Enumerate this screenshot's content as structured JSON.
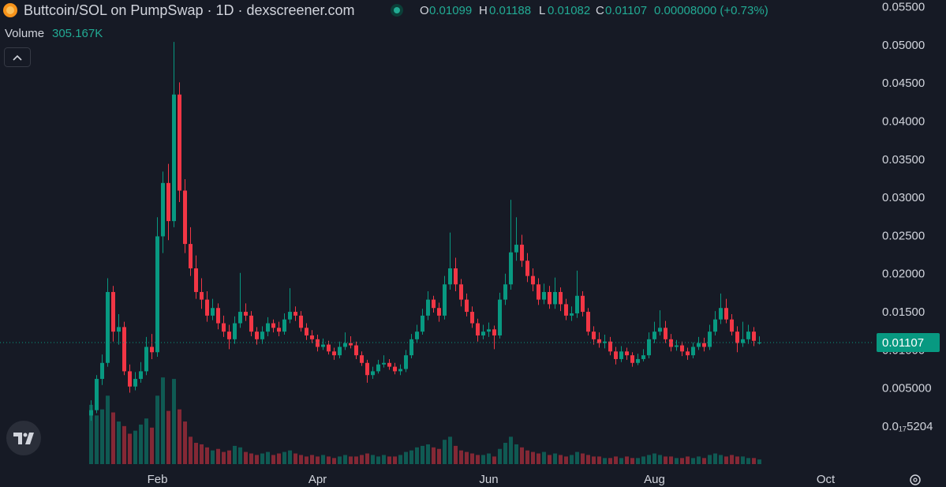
{
  "header": {
    "title": "Buttcoin/SOL on PumpSwap · 1D · dexscreener.com",
    "ohlc_labels": [
      "O",
      "H",
      "L",
      "C"
    ],
    "change": "0.00008000 (+0.73%)",
    "volume_title": "Volume",
    "volume_value": "305.167K"
  },
  "chart_data": {
    "type": "candlestick",
    "categories": [
      null,
      null,
      null,
      null,
      null,
      null,
      null,
      null,
      null,
      null,
      null,
      null,
      "Feb",
      null,
      null,
      null,
      null,
      null,
      null,
      null,
      null,
      null,
      null,
      null,
      null,
      null,
      null,
      null,
      null,
      null,
      null,
      null,
      null,
      null,
      null,
      null,
      null,
      null,
      null,
      null,
      null,
      "Apr",
      null,
      null,
      null,
      null,
      null,
      null,
      null,
      null,
      null,
      null,
      null,
      null,
      null,
      null,
      null,
      null,
      null,
      null,
      null,
      null,
      null,
      null,
      null,
      null,
      null,
      null,
      null,
      null,
      null,
      null,
      "Jun",
      null,
      null,
      null,
      null,
      null,
      null,
      null,
      null,
      null,
      null,
      null,
      null,
      null,
      null,
      null,
      null,
      null,
      null,
      null,
      null,
      null,
      null,
      null,
      null,
      null,
      null,
      null,
      null,
      null,
      "Aug",
      null,
      null,
      null,
      null,
      null,
      null,
      null,
      null,
      null,
      null,
      null,
      null,
      null,
      null,
      null,
      null,
      null,
      null,
      null,
      null,
      null,
      null,
      null,
      null,
      null,
      null,
      null,
      null,
      null,
      null,
      "Oct",
      null,
      null,
      null,
      null,
      null,
      null
    ],
    "open": [
      0.0015,
      0.0022,
      0.0063,
      0.0084,
      0.0177,
      0.0125,
      0.0131,
      0.0073,
      0.0053,
      0.0063,
      0.0073,
      0.0105,
      0.0098,
      0.025,
      0.032,
      0.027,
      0.0436,
      0.031,
      0.024,
      0.0208,
      0.0177,
      0.0167,
      0.0146,
      0.0156,
      0.0136,
      0.0125,
      0.0115,
      0.0136,
      0.0151,
      0.0146,
      0.0125,
      0.0115,
      0.0125,
      0.0136,
      0.013,
      0.0125,
      0.0141,
      0.0151,
      0.0146,
      0.013,
      0.012,
      0.0115,
      0.0105,
      0.0108,
      0.0099,
      0.0094,
      0.0105,
      0.011,
      0.0107,
      0.0094,
      0.0084,
      0.0068,
      0.0073,
      0.0082,
      0.0084,
      0.0079,
      0.0073,
      0.0076,
      0.0094,
      0.0115,
      0.0125,
      0.0146,
      0.0167,
      0.0156,
      0.0146,
      0.0187,
      0.0208,
      0.0187,
      0.0167,
      0.0151,
      0.0136,
      0.012,
      0.0125,
      0.0128,
      0.012,
      0.0167,
      0.0187,
      0.0229,
      0.0239,
      0.0218,
      0.0198,
      0.0187,
      0.0167,
      0.0177,
      0.0161,
      0.0177,
      0.0161,
      0.0146,
      0.0149,
      0.0172,
      0.0151,
      0.0125,
      0.0115,
      0.011,
      0.0112,
      0.0099,
      0.0089,
      0.0099,
      0.0094,
      0.0084,
      0.0089,
      0.0094,
      0.0115,
      0.0125,
      0.013,
      0.0115,
      0.0105,
      0.0107,
      0.0099,
      0.0094,
      0.0105,
      0.011,
      0.0105,
      0.0125,
      0.0141,
      0.0156,
      0.0141,
      0.0125,
      0.011,
      0.0115,
      0.0125,
      0.01099,
      null,
      null,
      null,
      null,
      null,
      null,
      null,
      null,
      null,
      null,
      null,
      null,
      null,
      null,
      null,
      null,
      null,
      null
    ],
    "high": [
      0.0035,
      0.0068,
      0.0095,
      0.0195,
      0.0185,
      0.0148,
      0.0138,
      0.0082,
      0.0072,
      0.0085,
      0.0118,
      0.0122,
      0.0275,
      0.0335,
      0.0345,
      0.0505,
      0.0452,
      0.0325,
      0.0262,
      0.0225,
      0.0195,
      0.0178,
      0.0168,
      0.0162,
      0.0146,
      0.0134,
      0.0145,
      0.0202,
      0.0162,
      0.0152,
      0.0131,
      0.0132,
      0.0144,
      0.0141,
      0.0138,
      0.0149,
      0.0182,
      0.0158,
      0.0152,
      0.0136,
      0.0127,
      0.0121,
      0.0116,
      0.0113,
      0.0104,
      0.0112,
      0.0124,
      0.0119,
      0.0112,
      0.0099,
      0.0088,
      0.0079,
      0.0088,
      0.0094,
      0.0089,
      0.0084,
      0.0082,
      0.0101,
      0.0122,
      0.0134,
      0.0155,
      0.0178,
      0.0172,
      0.0163,
      0.0198,
      0.0255,
      0.0222,
      0.0194,
      0.0175,
      0.0158,
      0.0142,
      0.0134,
      0.0137,
      0.0133,
      0.0176,
      0.0201,
      0.0298,
      0.0275,
      0.0252,
      0.0228,
      0.0208,
      0.0195,
      0.0188,
      0.0185,
      0.0196,
      0.0183,
      0.0168,
      0.0158,
      0.0205,
      0.0178,
      0.0156,
      0.0132,
      0.0124,
      0.0121,
      0.0118,
      0.0105,
      0.0106,
      0.0104,
      0.0098,
      0.0096,
      0.0102,
      0.0124,
      0.0138,
      0.0153,
      0.0139,
      0.0122,
      0.0114,
      0.0112,
      0.0104,
      0.0111,
      0.0118,
      0.0117,
      0.0134,
      0.0152,
      0.0175,
      0.0168,
      0.0148,
      0.0132,
      0.0138,
      0.0134,
      0.0131,
      0.01188,
      null,
      null,
      null,
      null,
      null,
      null,
      null,
      null,
      null,
      null,
      null,
      null,
      null,
      null,
      null,
      null,
      null,
      null
    ],
    "low": [
      0.0008,
      0.0018,
      0.0055,
      0.0079,
      0.0112,
      0.0108,
      0.0068,
      0.0045,
      0.0048,
      0.0058,
      0.0068,
      0.0089,
      0.0092,
      0.0228,
      0.0245,
      0.0262,
      0.0295,
      0.0228,
      0.0198,
      0.0168,
      0.0155,
      0.0138,
      0.014,
      0.0128,
      0.0118,
      0.0102,
      0.0109,
      0.013,
      0.0139,
      0.0119,
      0.0108,
      0.0109,
      0.0119,
      0.0124,
      0.0119,
      0.0121,
      0.0136,
      0.0139,
      0.0125,
      0.0114,
      0.011,
      0.0099,
      0.0101,
      0.0095,
      0.0088,
      0.009,
      0.0101,
      0.0103,
      0.0089,
      0.008,
      0.0058,
      0.0063,
      0.007,
      0.0078,
      0.0075,
      0.0069,
      0.0068,
      0.0072,
      0.009,
      0.011,
      0.0121,
      0.014,
      0.015,
      0.0138,
      0.0141,
      0.018,
      0.0178,
      0.0158,
      0.0145,
      0.013,
      0.0112,
      0.0115,
      0.0118,
      0.0102,
      0.0116,
      0.016,
      0.018,
      0.0218,
      0.021,
      0.019,
      0.0178,
      0.016,
      0.0161,
      0.0155,
      0.0155,
      0.0152,
      0.014,
      0.0139,
      0.0143,
      0.0145,
      0.012,
      0.0108,
      0.0104,
      0.0103,
      0.0094,
      0.0082,
      0.0085,
      0.0088,
      0.0079,
      0.0081,
      0.0086,
      0.009,
      0.011,
      0.012,
      0.011,
      0.0099,
      0.01,
      0.0093,
      0.0088,
      0.009,
      0.0101,
      0.0099,
      0.0101,
      0.012,
      0.0135,
      0.0136,
      0.012,
      0.0098,
      0.0105,
      0.0109,
      0.0106,
      0.01082,
      null,
      null,
      null,
      null,
      null,
      null,
      null,
      null,
      null,
      null,
      null,
      null,
      null,
      null,
      null,
      null,
      null,
      null
    ],
    "close": [
      0.0022,
      0.0063,
      0.0084,
      0.0177,
      0.0125,
      0.0131,
      0.0073,
      0.0053,
      0.0063,
      0.0073,
      0.0105,
      0.0098,
      0.025,
      0.032,
      0.027,
      0.0436,
      0.031,
      0.024,
      0.0208,
      0.0177,
      0.0167,
      0.0146,
      0.0156,
      0.0136,
      0.0125,
      0.0115,
      0.0136,
      0.0151,
      0.0146,
      0.0125,
      0.0115,
      0.0125,
      0.0136,
      0.013,
      0.0125,
      0.0141,
      0.0151,
      0.0146,
      0.013,
      0.012,
      0.0115,
      0.0105,
      0.0108,
      0.0099,
      0.0094,
      0.0105,
      0.011,
      0.0107,
      0.0094,
      0.0084,
      0.0068,
      0.0073,
      0.0082,
      0.0084,
      0.0079,
      0.0073,
      0.0076,
      0.0094,
      0.0115,
      0.0125,
      0.0146,
      0.0167,
      0.0156,
      0.0146,
      0.0187,
      0.0208,
      0.0187,
      0.0167,
      0.0151,
      0.0136,
      0.012,
      0.0125,
      0.0128,
      0.012,
      0.0167,
      0.0187,
      0.0229,
      0.0239,
      0.0218,
      0.0198,
      0.0187,
      0.0167,
      0.0177,
      0.0161,
      0.0177,
      0.0161,
      0.0146,
      0.0149,
      0.0172,
      0.0151,
      0.0125,
      0.0115,
      0.011,
      0.0112,
      0.0099,
      0.0089,
      0.0099,
      0.0094,
      0.0084,
      0.0089,
      0.0094,
      0.0115,
      0.0125,
      0.013,
      0.0115,
      0.0105,
      0.0107,
      0.0099,
      0.0094,
      0.0105,
      0.011,
      0.0105,
      0.0125,
      0.0141,
      0.0156,
      0.0141,
      0.0125,
      0.011,
      0.0115,
      0.0125,
      0.0113,
      0.01107,
      null,
      null,
      null,
      null,
      null,
      null,
      null,
      null,
      null,
      null,
      null,
      null,
      null,
      null,
      null,
      null,
      null,
      null
    ],
    "volume": [
      3900000,
      3200000,
      3600000,
      4500000,
      3400000,
      2800000,
      2500000,
      2000000,
      2200000,
      2600000,
      3000000,
      2400000,
      4500000,
      5700000,
      3500000,
      5600000,
      3600000,
      2800000,
      1800000,
      1400000,
      1300000,
      1100000,
      900000,
      1000000,
      800000,
      900000,
      1200000,
      1100000,
      800000,
      700000,
      600000,
      700000,
      800000,
      600000,
      700000,
      800000,
      900000,
      700000,
      600000,
      500000,
      600000,
      500000,
      600000,
      500000,
      400000,
      500000,
      600000,
      500000,
      500000,
      600000,
      700000,
      600000,
      500000,
      600000,
      500000,
      500000,
      600000,
      800000,
      900000,
      1100000,
      1200000,
      1300000,
      1100000,
      1000000,
      1600000,
      1800000,
      1200000,
      900000,
      800000,
      700000,
      600000,
      600000,
      700000,
      500000,
      1000000,
      1400000,
      1800000,
      1300000,
      1100000,
      900000,
      800000,
      700000,
      800000,
      600000,
      700000,
      600000,
      500000,
      600000,
      800000,
      700000,
      600000,
      500000,
      500000,
      400000,
      400000,
      500000,
      400000,
      500000,
      400000,
      400000,
      500000,
      600000,
      700000,
      600000,
      500000,
      500000,
      400000,
      400000,
      500000,
      400000,
      500000,
      400000,
      600000,
      700000,
      600000,
      500000,
      600000,
      500000,
      500000,
      400000,
      400000,
      305167,
      null,
      null,
      null,
      null,
      null,
      null,
      null,
      null,
      null,
      null,
      null,
      null,
      null,
      null,
      null,
      null,
      null,
      null
    ],
    "up_color": "#089981",
    "down_color": "#f23645",
    "ylim": [
      -0.0056,
      0.056
    ],
    "yticks": [
      {
        "value": 0.055,
        "label": "0.05500"
      },
      {
        "value": 0.05,
        "label": "0.05000"
      },
      {
        "value": 0.045,
        "label": "0.04500"
      },
      {
        "value": 0.04,
        "label": "0.04000"
      },
      {
        "value": 0.035,
        "label": "0.03500"
      },
      {
        "value": 0.03,
        "label": "0.03000"
      },
      {
        "value": 0.025,
        "label": "0.02500"
      },
      {
        "value": 0.02,
        "label": "0.02000"
      },
      {
        "value": 0.015,
        "label": "0.01500"
      },
      {
        "value": 0.01,
        "label": "0.01000"
      },
      {
        "value": 0.005,
        "label": "0.005000"
      },
      {
        "value": 5.204e-18,
        "label": "0.0₁₇5204"
      }
    ],
    "y2lim": [
      0,
      30000000
    ],
    "grid": false,
    "last_price_line": true
  }
}
